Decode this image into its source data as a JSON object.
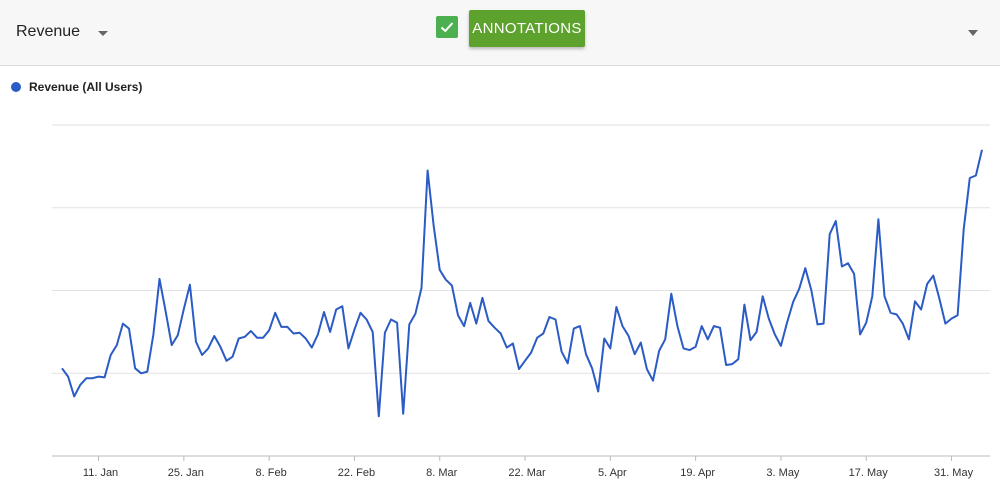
{
  "toolbar": {
    "metric_label": "Revenue",
    "annotations_label": "ANNOTATIONS",
    "annotations_checked": true
  },
  "colors": {
    "series": "#2b5bc4",
    "button": "#5da22d",
    "checkbox": "#4caf50",
    "grid": "#e2e2e2"
  },
  "chart_data": {
    "type": "line",
    "title": "",
    "xlabel": "",
    "ylabel": "",
    "grid": true,
    "legend": "top-left",
    "x_start": "2021-01-05",
    "x_tick_labels": [
      "11. Jan",
      "25. Jan",
      "8. Feb",
      "22. Feb",
      "8. Mar",
      "22. Mar",
      "5. Apr",
      "19. Apr",
      "3. May",
      "17. May",
      "31. May"
    ],
    "ylim": [
      0,
      4
    ],
    "series": [
      {
        "name": "Revenue (All Users)",
        "values": [
          1.06,
          0.96,
          0.72,
          0.86,
          0.94,
          0.94,
          0.96,
          0.95,
          1.22,
          1.34,
          1.6,
          1.54,
          1.06,
          1.0,
          1.02,
          1.47,
          2.14,
          1.75,
          1.34,
          1.46,
          1.78,
          2.07,
          1.38,
          1.22,
          1.3,
          1.45,
          1.32,
          1.15,
          1.2,
          1.42,
          1.44,
          1.51,
          1.43,
          1.43,
          1.52,
          1.73,
          1.56,
          1.56,
          1.48,
          1.49,
          1.42,
          1.31,
          1.47,
          1.74,
          1.5,
          1.77,
          1.81,
          1.3,
          1.53,
          1.73,
          1.65,
          1.5,
          0.48,
          1.49,
          1.65,
          1.61,
          0.51,
          1.59,
          1.72,
          2.03,
          3.45,
          2.78,
          2.25,
          2.13,
          2.06,
          1.7,
          1.57,
          1.85,
          1.6,
          1.91,
          1.63,
          1.55,
          1.48,
          1.31,
          1.36,
          1.05,
          1.15,
          1.25,
          1.43,
          1.48,
          1.68,
          1.65,
          1.26,
          1.12,
          1.54,
          1.57,
          1.23,
          1.06,
          0.78,
          1.42,
          1.3,
          1.8,
          1.57,
          1.45,
          1.23,
          1.37,
          1.05,
          0.91,
          1.27,
          1.41,
          1.96,
          1.57,
          1.3,
          1.28,
          1.32,
          1.57,
          1.41,
          1.57,
          1.55,
          1.1,
          1.11,
          1.17,
          1.83,
          1.4,
          1.5,
          1.93,
          1.66,
          1.47,
          1.33,
          1.61,
          1.86,
          2.02,
          2.27,
          2.0,
          1.59,
          1.6,
          2.68,
          2.84,
          2.29,
          2.33,
          2.2,
          1.47,
          1.61,
          1.93,
          2.86,
          1.93,
          1.73,
          1.71,
          1.6,
          1.41,
          1.87,
          1.77,
          2.08,
          2.18,
          1.9,
          1.6,
          1.66,
          1.7,
          2.74,
          3.36,
          3.39,
          3.7
        ]
      }
    ]
  }
}
